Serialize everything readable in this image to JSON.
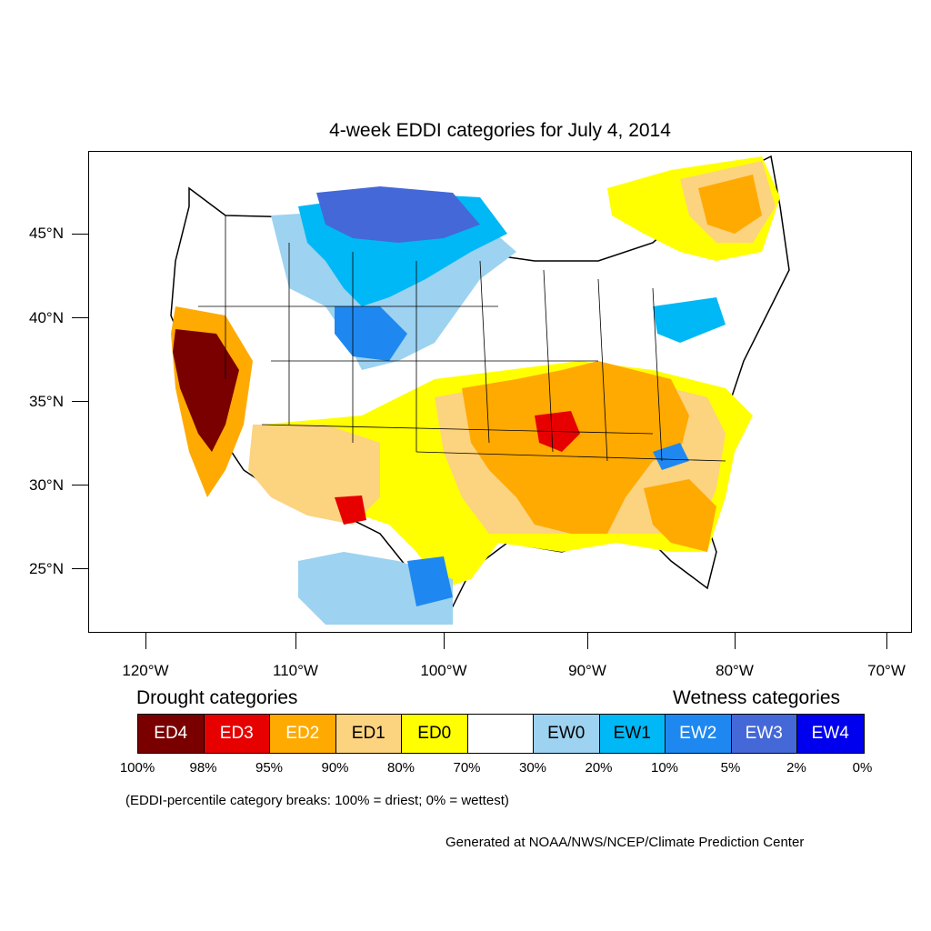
{
  "title": "4-week EDDI categories for July 4, 2014",
  "lat_labels": [
    "45°N",
    "40°N",
    "35°N",
    "30°N",
    "25°N"
  ],
  "lon_labels": [
    "120°W",
    "110°W",
    "100°W",
    "90°W",
    "80°W",
    "70°W"
  ],
  "legend": {
    "drought_heading": "Drought categories",
    "wetness_heading": "Wetness categories",
    "categories": [
      {
        "label": "ED4",
        "color": "#7a0000",
        "text_color": "#ffffff"
      },
      {
        "label": "ED3",
        "color": "#e60000",
        "text_color": "#ffffff"
      },
      {
        "label": "ED2",
        "color": "#ffaa00",
        "text_color": "#ffffff"
      },
      {
        "label": "ED1",
        "color": "#fcd37f",
        "text_color": "#000000"
      },
      {
        "label": "ED0",
        "color": "#ffff00",
        "text_color": "#000000"
      },
      {
        "label": "",
        "color": "#ffffff",
        "text_color": "#000000"
      },
      {
        "label": "EW0",
        "color": "#9dd2f0",
        "text_color": "#000000"
      },
      {
        "label": "EW1",
        "color": "#00b8f5",
        "text_color": "#000000"
      },
      {
        "label": "EW2",
        "color": "#1e88f0",
        "text_color": "#ffffff"
      },
      {
        "label": "EW3",
        "color": "#4468d8",
        "text_color": "#ffffff"
      },
      {
        "label": "EW4",
        "color": "#0000ee",
        "text_color": "#ffffff"
      }
    ],
    "breaks": [
      "100%",
      "98%",
      "95%",
      "90%",
      "80%",
      "70%",
      "30%",
      "20%",
      "10%",
      "5%",
      "2%",
      "0%"
    ],
    "note": "(EDDI-percentile category breaks: 100% = driest; 0% = wettest)"
  },
  "credit": "Generated at NOAA/NWS/NCEP/Climate Prediction Center"
}
